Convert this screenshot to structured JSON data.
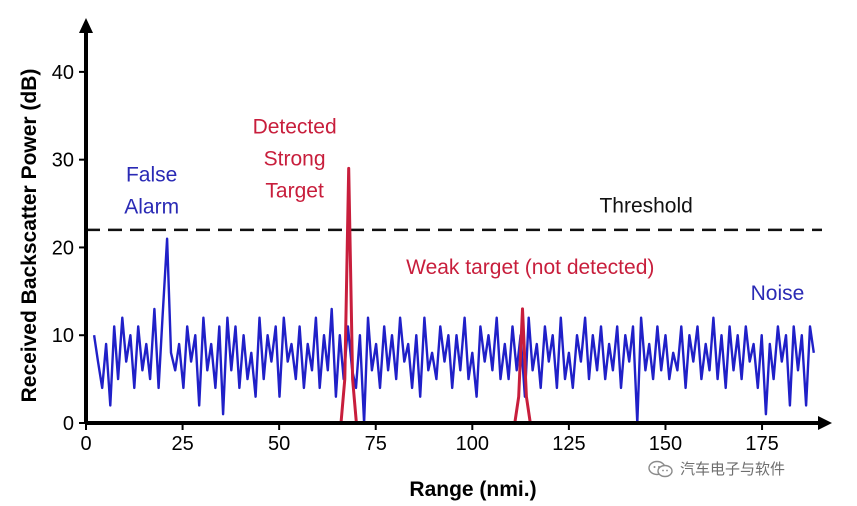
{
  "chart_data": {
    "type": "line",
    "xlabel": "Range (nmi.)",
    "ylabel": "Received Backscatter Power (dB)",
    "xlim": [
      0,
      190
    ],
    "ylim": [
      0,
      45
    ],
    "x_ticks": [
      "0",
      "25",
      "50",
      "75",
      "100",
      "125",
      "150",
      "175"
    ],
    "y_ticks": [
      "0",
      "10",
      "20",
      "30",
      "40"
    ],
    "threshold": 22,
    "series": [
      {
        "color": "#2020c8",
        "style": "solid",
        "points": [
          [
            2.1,
            10
          ],
          [
            3.1,
            7
          ],
          [
            4.2,
            4
          ],
          [
            5.2,
            9
          ],
          [
            6.3,
            2
          ],
          [
            7.3,
            11
          ],
          [
            8.3,
            5
          ],
          [
            9.4,
            12
          ],
          [
            10.4,
            7
          ],
          [
            11.5,
            10
          ],
          [
            12.5,
            4
          ],
          [
            13.5,
            11
          ],
          [
            14.6,
            6
          ],
          [
            15.6,
            9
          ],
          [
            16.6,
            5
          ],
          [
            17.7,
            13
          ],
          [
            18.8,
            4
          ],
          [
            19.8,
            12
          ],
          [
            21,
            21
          ],
          [
            22,
            8
          ],
          [
            23.1,
            6
          ],
          [
            24.1,
            9
          ],
          [
            25.2,
            4
          ],
          [
            26.2,
            11
          ],
          [
            27.2,
            7
          ],
          [
            28.3,
            10
          ],
          [
            29.3,
            2
          ],
          [
            30.4,
            12
          ],
          [
            31.4,
            6
          ],
          [
            32.4,
            9
          ],
          [
            33.5,
            4
          ],
          [
            34.5,
            11
          ],
          [
            35.5,
            1
          ],
          [
            36.6,
            12
          ],
          [
            37.6,
            6
          ],
          [
            38.7,
            11
          ],
          [
            39.7,
            4
          ],
          [
            40.8,
            10
          ],
          [
            41.8,
            5
          ],
          [
            42.8,
            8
          ],
          [
            43.9,
            3
          ],
          [
            44.9,
            12
          ],
          [
            46,
            5
          ],
          [
            47,
            10
          ],
          [
            48,
            7
          ],
          [
            49.1,
            11
          ],
          [
            50.1,
            3
          ],
          [
            51.2,
            12
          ],
          [
            52.2,
            7
          ],
          [
            53.2,
            9
          ],
          [
            54.3,
            5
          ],
          [
            55.3,
            11
          ],
          [
            56.4,
            4
          ],
          [
            57.4,
            9
          ],
          [
            58.5,
            6
          ],
          [
            59.5,
            12
          ],
          [
            60.5,
            4
          ],
          [
            61.6,
            10
          ],
          [
            62.6,
            6
          ],
          [
            63.6,
            13
          ],
          [
            64.7,
            3
          ],
          [
            65.7,
            10
          ],
          [
            66.7,
            5
          ],
          [
            67.8,
            11
          ],
          [
            68.9,
            6
          ],
          [
            69.9,
            4
          ],
          [
            70.9,
            10
          ],
          [
            72,
            0
          ],
          [
            73,
            12
          ],
          [
            74,
            6
          ],
          [
            75.1,
            9
          ],
          [
            76.1,
            4
          ],
          [
            77.2,
            11
          ],
          [
            78.2,
            6
          ],
          [
            79.2,
            10
          ],
          [
            80.3,
            5
          ],
          [
            81.3,
            12
          ],
          [
            82.4,
            7
          ],
          [
            83.4,
            9
          ],
          [
            84.4,
            4
          ],
          [
            85.5,
            10
          ],
          [
            86.5,
            3
          ],
          [
            87.6,
            12
          ],
          [
            88.6,
            6
          ],
          [
            89.6,
            8
          ],
          [
            90.7,
            5
          ],
          [
            91.7,
            11
          ],
          [
            92.8,
            7
          ],
          [
            93.8,
            10
          ],
          [
            94.8,
            4
          ],
          [
            95.9,
            10
          ],
          [
            96.9,
            6
          ],
          [
            98,
            12
          ],
          [
            99,
            5
          ],
          [
            100,
            8
          ],
          [
            101.1,
            3
          ],
          [
            102.1,
            11
          ],
          [
            103.2,
            7
          ],
          [
            104.2,
            10
          ],
          [
            105.2,
            6
          ],
          [
            106.3,
            12
          ],
          [
            107.3,
            5
          ],
          [
            108.4,
            9
          ],
          [
            109.4,
            5
          ],
          [
            110.4,
            11
          ],
          [
            111.5,
            6
          ],
          [
            112.5,
            10
          ],
          [
            113.6,
            3
          ],
          [
            114.6,
            12
          ],
          [
            115.6,
            6
          ],
          [
            116.7,
            9
          ],
          [
            117.7,
            4
          ],
          [
            118.8,
            11
          ],
          [
            119.8,
            7
          ],
          [
            120.8,
            10
          ],
          [
            121.9,
            4
          ],
          [
            122.9,
            12
          ],
          [
            124,
            5
          ],
          [
            125,
            8
          ],
          [
            126,
            4
          ],
          [
            127.1,
            10
          ],
          [
            128.1,
            7
          ],
          [
            129.2,
            12
          ],
          [
            130.2,
            5
          ],
          [
            131.2,
            10
          ],
          [
            132.3,
            6
          ],
          [
            133.3,
            11
          ],
          [
            134.4,
            5
          ],
          [
            135.4,
            9
          ],
          [
            136.4,
            6
          ],
          [
            137.5,
            11
          ],
          [
            138.5,
            4
          ],
          [
            139.6,
            10
          ],
          [
            140.6,
            7
          ],
          [
            141.6,
            11
          ],
          [
            142.7,
            0
          ],
          [
            143.7,
            12
          ],
          [
            144.8,
            6
          ],
          [
            145.8,
            9
          ],
          [
            146.8,
            5
          ],
          [
            147.9,
            11
          ],
          [
            148.9,
            6
          ],
          [
            150,
            10
          ],
          [
            151,
            5
          ],
          [
            152,
            8
          ],
          [
            153.1,
            6
          ],
          [
            154.1,
            11
          ],
          [
            155.2,
            4
          ],
          [
            156.2,
            10
          ],
          [
            157.2,
            7
          ],
          [
            158.3,
            11
          ],
          [
            159.3,
            5
          ],
          [
            160.4,
            9
          ],
          [
            161.4,
            6
          ],
          [
            162.4,
            12
          ],
          [
            163.5,
            5
          ],
          [
            164.5,
            10
          ],
          [
            165.6,
            4
          ],
          [
            166.6,
            11
          ],
          [
            167.6,
            6
          ],
          [
            168.7,
            10
          ],
          [
            169.7,
            5
          ],
          [
            170.8,
            11
          ],
          [
            171.8,
            7
          ],
          [
            172.8,
            9
          ],
          [
            173.9,
            4
          ],
          [
            174.9,
            10
          ],
          [
            176,
            1
          ],
          [
            177,
            9
          ],
          [
            178,
            5
          ],
          [
            179.1,
            11
          ],
          [
            180.1,
            7
          ],
          [
            181.2,
            10
          ],
          [
            182.2,
            2
          ],
          [
            183.2,
            11
          ],
          [
            184.3,
            6
          ],
          [
            185.3,
            10
          ],
          [
            186.4,
            2
          ],
          [
            187.4,
            11
          ],
          [
            188.4,
            8
          ]
        ]
      },
      {
        "color": "#c81e3c",
        "style": "solid",
        "points": [
          [
            66,
            0
          ],
          [
            67,
            5
          ],
          [
            68,
            29
          ],
          [
            69,
            5
          ],
          [
            70,
            0
          ]
        ]
      },
      {
        "color": "#c81e3c",
        "style": "solid",
        "points": [
          [
            111,
            0
          ],
          [
            112,
            3
          ],
          [
            113,
            13
          ],
          [
            114,
            3
          ],
          [
            115,
            0
          ]
        ]
      }
    ],
    "annotations": [
      {
        "text": [
          "False",
          "Alarm"
        ],
        "color": "#2a2ab5",
        "x": 17,
        "y": 27.5
      },
      {
        "text": [
          "Detected",
          "Strong",
          "Target"
        ],
        "color": "#c81e3c",
        "x": 54,
        "y": 33
      },
      {
        "text": [
          "Threshold"
        ],
        "color": "#111111",
        "x": 145,
        "y": 24
      },
      {
        "text": [
          "Weak target (not detected)"
        ],
        "color": "#c81e3c",
        "x": 115,
        "y": 17
      },
      {
        "text": [
          "Noise"
        ],
        "color": "#2a2ab5",
        "x": 179,
        "y": 14
      }
    ]
  },
  "watermark": {
    "text": "汽车电子与软件",
    "icon": "wechat-icon"
  }
}
